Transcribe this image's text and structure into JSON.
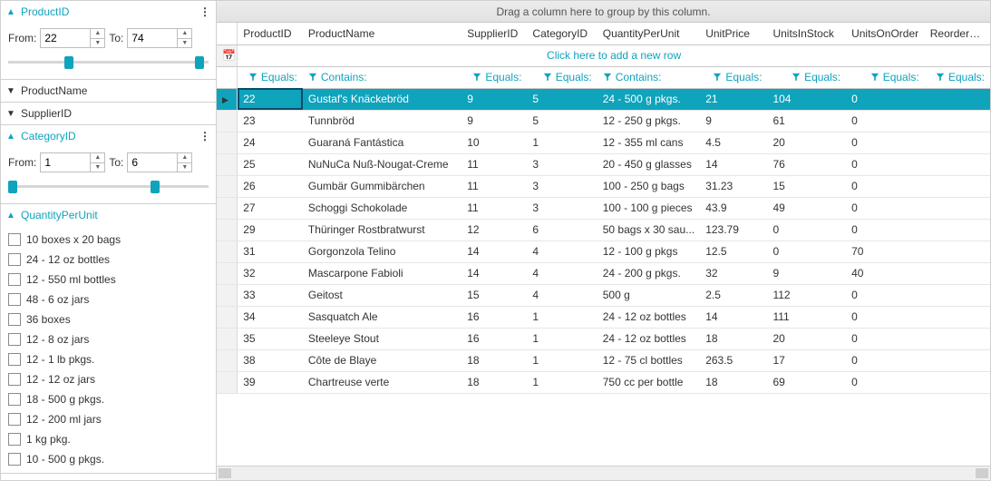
{
  "colors": {
    "accent": "#0fa3bc",
    "border": "#d0d0d0",
    "header_bg": "#e6e6e6",
    "row_border": "#e6e6e6"
  },
  "sidebar": {
    "filters": [
      {
        "key": "product_id",
        "title": "ProductID",
        "expanded": true,
        "has_more": true,
        "range": {
          "from_label": "From:",
          "from_value": "22",
          "to_label": "To:",
          "to_value": "74"
        },
        "slider": {
          "left_pct": 28,
          "right_pct": 93
        }
      },
      {
        "key": "product_name",
        "title": "ProductName",
        "expanded": false,
        "has_more": false
      },
      {
        "key": "supplier_id",
        "title": "SupplierID",
        "expanded": false,
        "has_more": false
      },
      {
        "key": "category_id",
        "title": "CategoryID",
        "expanded": true,
        "has_more": true,
        "range": {
          "from_label": "From:",
          "from_value": "1",
          "to_label": "To:",
          "to_value": "6"
        },
        "slider": {
          "left_pct": 0,
          "right_pct": 71
        }
      },
      {
        "key": "quantity_per_unit",
        "title": "QuantityPerUnit",
        "expanded": true,
        "has_more": false,
        "checklist": [
          "10 boxes x 20 bags",
          "24 - 12 oz bottles",
          "12 - 550 ml bottles",
          "48 - 6 oz jars",
          "36 boxes",
          "12 - 8 oz jars",
          "12 - 1 lb pkgs.",
          "12 - 12 oz jars",
          "18 - 500 g pkgs.",
          "12 - 200 ml jars",
          "1 kg pkg.",
          "10 - 500 g pkgs."
        ]
      }
    ]
  },
  "grid": {
    "group_bar_text": "Drag a column here to group by this column.",
    "new_row_text": "Click here to add a new row",
    "columns": [
      {
        "key": "ProductID",
        "label": "ProductID",
        "filter_op": "Equals:",
        "align": "right"
      },
      {
        "key": "ProductName",
        "label": "ProductName",
        "filter_op": "Contains:",
        "align": "left"
      },
      {
        "key": "SupplierID",
        "label": "SupplierID",
        "filter_op": "Equals:",
        "align": "right"
      },
      {
        "key": "CategoryID",
        "label": "CategoryID",
        "filter_op": "Equals:",
        "align": "right"
      },
      {
        "key": "QuantityPerUnit",
        "label": "QuantityPerUnit",
        "filter_op": "Contains:",
        "align": "left"
      },
      {
        "key": "UnitPrice",
        "label": "UnitPrice",
        "filter_op": "Equals:",
        "align": "right"
      },
      {
        "key": "UnitsInStock",
        "label": "UnitsInStock",
        "filter_op": "Equals:",
        "align": "right"
      },
      {
        "key": "UnitsOnOrder",
        "label": "UnitsOnOrder",
        "filter_op": "Equals:",
        "align": "right"
      },
      {
        "key": "ReorderLevel",
        "label": "ReorderLev",
        "filter_op": "Equals:",
        "align": "right"
      }
    ],
    "selected_row_index": 0,
    "rows": [
      {
        "ProductID": "22",
        "ProductName": "Gustaf's Knäckebröd",
        "SupplierID": "9",
        "CategoryID": "5",
        "QuantityPerUnit": "24 - 500 g pkgs.",
        "UnitPrice": "21",
        "UnitsInStock": "104",
        "UnitsOnOrder": "0"
      },
      {
        "ProductID": "23",
        "ProductName": "Tunnbröd",
        "SupplierID": "9",
        "CategoryID": "5",
        "QuantityPerUnit": "12 - 250 g pkgs.",
        "UnitPrice": "9",
        "UnitsInStock": "61",
        "UnitsOnOrder": "0"
      },
      {
        "ProductID": "24",
        "ProductName": "Guaraná Fantástica",
        "SupplierID": "10",
        "CategoryID": "1",
        "QuantityPerUnit": "12 - 355 ml cans",
        "UnitPrice": "4.5",
        "UnitsInStock": "20",
        "UnitsOnOrder": "0"
      },
      {
        "ProductID": "25",
        "ProductName": "NuNuCa Nuß-Nougat-Creme",
        "SupplierID": "11",
        "CategoryID": "3",
        "QuantityPerUnit": "20 - 450 g glasses",
        "UnitPrice": "14",
        "UnitsInStock": "76",
        "UnitsOnOrder": "0"
      },
      {
        "ProductID": "26",
        "ProductName": "Gumbär Gummibärchen",
        "SupplierID": "11",
        "CategoryID": "3",
        "QuantityPerUnit": "100 - 250 g bags",
        "UnitPrice": "31.23",
        "UnitsInStock": "15",
        "UnitsOnOrder": "0"
      },
      {
        "ProductID": "27",
        "ProductName": "Schoggi Schokolade",
        "SupplierID": "11",
        "CategoryID": "3",
        "QuantityPerUnit": "100 - 100 g pieces",
        "UnitPrice": "43.9",
        "UnitsInStock": "49",
        "UnitsOnOrder": "0"
      },
      {
        "ProductID": "29",
        "ProductName": "Thüringer Rostbratwurst",
        "SupplierID": "12",
        "CategoryID": "6",
        "QuantityPerUnit": "50 bags x 30 sau...",
        "UnitPrice": "123.79",
        "UnitsInStock": "0",
        "UnitsOnOrder": "0"
      },
      {
        "ProductID": "31",
        "ProductName": "Gorgonzola Telino",
        "SupplierID": "14",
        "CategoryID": "4",
        "QuantityPerUnit": "12 - 100 g pkgs",
        "UnitPrice": "12.5",
        "UnitsInStock": "0",
        "UnitsOnOrder": "70"
      },
      {
        "ProductID": "32",
        "ProductName": "Mascarpone Fabioli",
        "SupplierID": "14",
        "CategoryID": "4",
        "QuantityPerUnit": "24 - 200 g pkgs.",
        "UnitPrice": "32",
        "UnitsInStock": "9",
        "UnitsOnOrder": "40"
      },
      {
        "ProductID": "33",
        "ProductName": "Geitost",
        "SupplierID": "15",
        "CategoryID": "4",
        "QuantityPerUnit": "500 g",
        "UnitPrice": "2.5",
        "UnitsInStock": "112",
        "UnitsOnOrder": "0"
      },
      {
        "ProductID": "34",
        "ProductName": "Sasquatch Ale",
        "SupplierID": "16",
        "CategoryID": "1",
        "QuantityPerUnit": "24 - 12 oz bottles",
        "UnitPrice": "14",
        "UnitsInStock": "111",
        "UnitsOnOrder": "0"
      },
      {
        "ProductID": "35",
        "ProductName": "Steeleye Stout",
        "SupplierID": "16",
        "CategoryID": "1",
        "QuantityPerUnit": "24 - 12 oz bottles",
        "UnitPrice": "18",
        "UnitsInStock": "20",
        "UnitsOnOrder": "0"
      },
      {
        "ProductID": "38",
        "ProductName": "Côte de Blaye",
        "SupplierID": "18",
        "CategoryID": "1",
        "QuantityPerUnit": "12 - 75 cl bottles",
        "UnitPrice": "263.5",
        "UnitsInStock": "17",
        "UnitsOnOrder": "0"
      },
      {
        "ProductID": "39",
        "ProductName": "Chartreuse verte",
        "SupplierID": "18",
        "CategoryID": "1",
        "QuantityPerUnit": "750 cc per bottle",
        "UnitPrice": "18",
        "UnitsInStock": "69",
        "UnitsOnOrder": "0"
      }
    ]
  }
}
